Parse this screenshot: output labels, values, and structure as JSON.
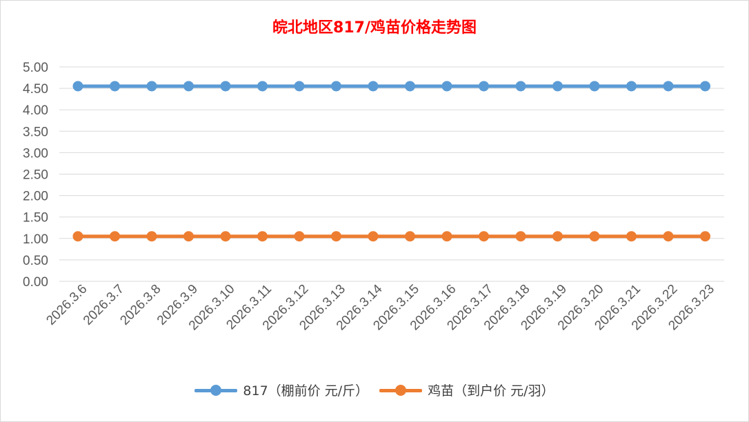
{
  "chart_data": {
    "type": "line",
    "title": "皖北地区817/鸡苗价格走势图",
    "categories": [
      "2026.3.6",
      "2026.3.7",
      "2026.3.8",
      "2026.3.9",
      "2026.3.10",
      "2026.3.11",
      "2026.3.12",
      "2026.3.13",
      "2026.3.14",
      "2026.3.15",
      "2026.3.16",
      "2026.3.17",
      "2026.3.18",
      "2026.3.19",
      "2026.3.20",
      "2026.3.21",
      "2026.3.22",
      "2026.3.23"
    ],
    "ylim": [
      0,
      5
    ],
    "yticks": [
      "0.00",
      "0.50",
      "1.00",
      "1.50",
      "2.00",
      "2.50",
      "3.00",
      "3.50",
      "4.00",
      "4.50",
      "5.00"
    ],
    "grid": true,
    "legend_position": "bottom",
    "series": [
      {
        "name": "817（棚前价 元/斤）",
        "color": "#5b9bd5",
        "values": [
          4.55,
          4.55,
          4.55,
          4.55,
          4.55,
          4.55,
          4.55,
          4.55,
          4.55,
          4.55,
          4.55,
          4.55,
          4.55,
          4.55,
          4.55,
          4.55,
          4.55,
          4.55
        ]
      },
      {
        "name": "鸡苗（到户价 元/羽）",
        "color": "#ed7d31",
        "values": [
          1.05,
          1.05,
          1.05,
          1.05,
          1.05,
          1.05,
          1.05,
          1.05,
          1.05,
          1.05,
          1.05,
          1.05,
          1.05,
          1.05,
          1.05,
          1.05,
          1.05,
          1.05
        ]
      }
    ]
  }
}
